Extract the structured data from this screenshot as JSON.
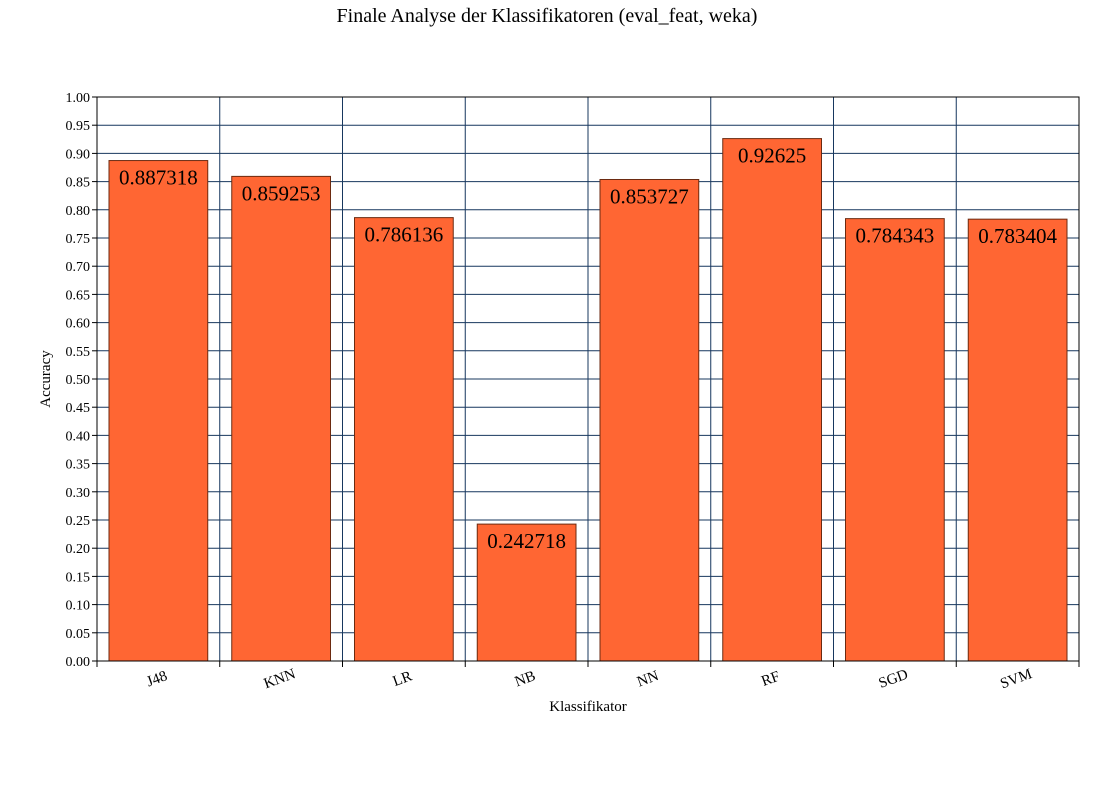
{
  "chart_data": {
    "type": "bar",
    "title": "Finale Analyse der Klassifikatoren (eval_feat, weka)",
    "xlabel": "Klassifikator",
    "ylabel": "Accuracy",
    "categories": [
      "J48",
      "KNN",
      "LR",
      "NB",
      "NN",
      "RF",
      "SGD",
      "SVM"
    ],
    "values": [
      0.887318,
      0.859253,
      0.786136,
      0.242718,
      0.853727,
      0.92625,
      0.784343,
      0.783404
    ],
    "value_labels": [
      "0.887318",
      "0.859253",
      "0.786136",
      "0.242718",
      "0.853727",
      "0.92625",
      "0.784343",
      "0.783404"
    ],
    "ylim": [
      0,
      1.0
    ],
    "ytick_step": 0.05,
    "ytick_labels": [
      "0.00",
      "0.05",
      "0.10",
      "0.15",
      "0.20",
      "0.25",
      "0.30",
      "0.35",
      "0.40",
      "0.45",
      "0.50",
      "0.55",
      "0.60",
      "0.65",
      "0.70",
      "0.75",
      "0.80",
      "0.85",
      "0.90",
      "0.95",
      "1.00"
    ],
    "grid": true,
    "legend": "none",
    "bar_color": "#ff6633",
    "bar_edge_color": "#6b2a10",
    "grid_color": "#17375e"
  }
}
